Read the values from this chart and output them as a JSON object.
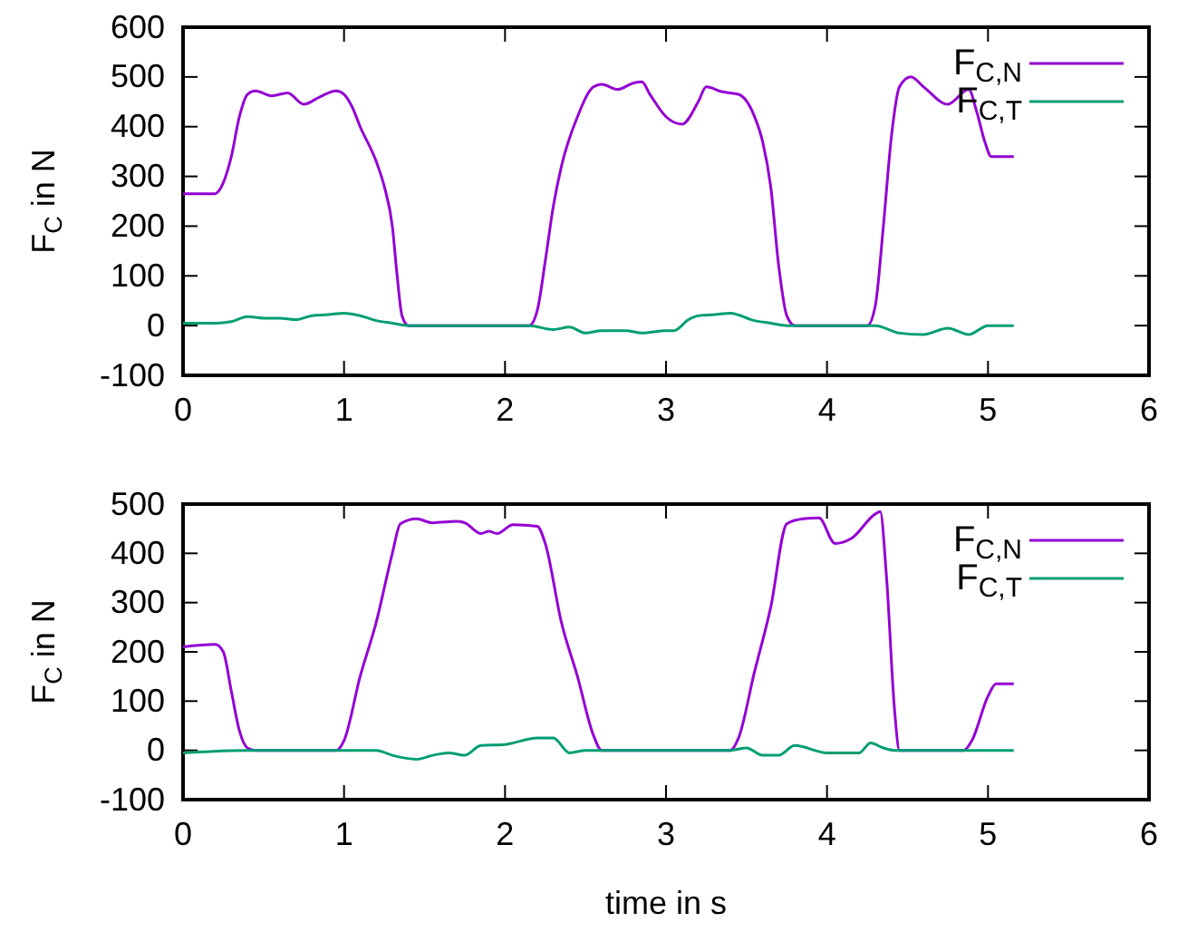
{
  "chart_data": [
    {
      "type": "line",
      "ylabel": "F$_{C}$ in N",
      "xlim": [
        0,
        6
      ],
      "xticks": [
        0,
        1,
        2,
        3,
        4,
        5,
        6
      ],
      "ylim": [
        -100,
        600
      ],
      "yticks": [
        -100,
        0,
        100,
        200,
        300,
        400,
        500,
        600
      ],
      "grid": false,
      "legend": "top right",
      "marker": "none",
      "line_style": "solid",
      "series": [
        {
          "name": "F$_{C,N}$",
          "color": "#9400d3",
          "x": [
            0,
            0.2,
            0.22,
            0.3,
            0.35,
            0.4,
            0.45,
            0.55,
            0.65,
            0.75,
            0.85,
            0.95,
            1.0,
            1.05,
            1.1,
            1.2,
            1.25,
            1.3,
            1.33,
            1.36,
            1.4,
            2.15,
            2.2,
            2.25,
            2.3,
            2.35,
            2.45,
            2.55,
            2.6,
            2.7,
            2.8,
            2.85,
            2.9,
            3.0,
            3.1,
            3.2,
            3.25,
            3.35,
            3.45,
            3.55,
            3.6,
            3.65,
            3.7,
            3.75,
            3.8,
            4.25,
            4.3,
            4.35,
            4.4,
            4.45,
            4.52,
            4.6,
            4.75,
            4.88,
            4.93,
            4.98,
            5.02,
            5.16
          ],
          "values": [
            265,
            265,
            270,
            340,
            420,
            465,
            472,
            462,
            468,
            445,
            460,
            472,
            465,
            440,
            400,
            330,
            280,
            200,
            100,
            20,
            0,
            0,
            30,
            130,
            240,
            320,
            420,
            480,
            485,
            475,
            488,
            490,
            465,
            420,
            405,
            450,
            480,
            470,
            465,
            420,
            370,
            280,
            120,
            20,
            0,
            0,
            40,
            200,
            380,
            480,
            500,
            480,
            445,
            475,
            430,
            370,
            340,
            340
          ]
        },
        {
          "name": "F$_{C,T}$",
          "color": "#009e73",
          "x": [
            0,
            0.2,
            0.3,
            0.4,
            0.5,
            0.6,
            0.7,
            0.8,
            0.9,
            1.0,
            1.1,
            1.2,
            1.3,
            1.4,
            2.15,
            2.3,
            2.4,
            2.5,
            2.6,
            2.75,
            2.85,
            3.0,
            3.05,
            3.14,
            3.2,
            3.3,
            3.4,
            3.55,
            3.65,
            3.75,
            4.3,
            4.45,
            4.6,
            4.75,
            4.88,
            5.0,
            5.16
          ],
          "values": [
            5,
            5,
            8,
            18,
            15,
            15,
            12,
            20,
            22,
            25,
            20,
            10,
            5,
            0,
            0,
            -8,
            -3,
            -15,
            -10,
            -10,
            -15,
            -10,
            -10,
            12,
            20,
            22,
            25,
            10,
            5,
            0,
            0,
            -15,
            -18,
            -5,
            -18,
            0,
            0
          ]
        }
      ]
    },
    {
      "type": "line",
      "xlabel": "time in s",
      "ylabel": "F$_{C}$ in N",
      "xlim": [
        0,
        6
      ],
      "xticks": [
        0,
        1,
        2,
        3,
        4,
        5,
        6
      ],
      "ylim": [
        -100,
        500
      ],
      "yticks": [
        -100,
        0,
        100,
        200,
        300,
        400,
        500
      ],
      "grid": false,
      "legend": "top right",
      "marker": "none",
      "line_style": "solid",
      "series": [
        {
          "name": "F$_{C,N}$",
          "color": "#9400d3",
          "x": [
            0,
            0.2,
            0.25,
            0.3,
            0.35,
            0.4,
            0.45,
            0.95,
            1.0,
            1.1,
            1.2,
            1.3,
            1.35,
            1.45,
            1.55,
            1.7,
            1.75,
            1.85,
            1.9,
            1.95,
            2.05,
            2.2,
            2.25,
            2.35,
            2.45,
            2.55,
            2.6,
            3.4,
            3.45,
            3.55,
            3.65,
            3.75,
            3.85,
            3.95,
            4.05,
            4.15,
            4.3,
            4.33,
            4.37,
            4.42,
            4.45,
            4.85,
            4.9,
            5.0,
            5.05,
            5.16
          ],
          "values": [
            210,
            215,
            200,
            120,
            40,
            5,
            0,
            0,
            20,
            150,
            260,
            400,
            460,
            470,
            462,
            465,
            462,
            440,
            445,
            440,
            458,
            455,
            420,
            260,
            150,
            30,
            0,
            0,
            25,
            160,
            290,
            460,
            470,
            472,
            420,
            430,
            480,
            485,
            350,
            80,
            0,
            0,
            20,
            110,
            135,
            135
          ]
        },
        {
          "name": "F$_{C,T}$",
          "color": "#009e73",
          "x": [
            0,
            0.4,
            1.2,
            1.3,
            1.45,
            1.55,
            1.65,
            1.75,
            1.85,
            2.0,
            2.2,
            2.3,
            2.4,
            2.5,
            3.4,
            3.5,
            3.6,
            3.7,
            3.8,
            4.0,
            4.2,
            4.27,
            4.35,
            4.42,
            5.16
          ],
          "values": [
            -5,
            0,
            0,
            -10,
            -18,
            -10,
            -5,
            -10,
            10,
            12,
            25,
            25,
            -5,
            0,
            0,
            5,
            -10,
            -10,
            10,
            -5,
            -5,
            15,
            5,
            0,
            0
          ]
        }
      ]
    }
  ]
}
